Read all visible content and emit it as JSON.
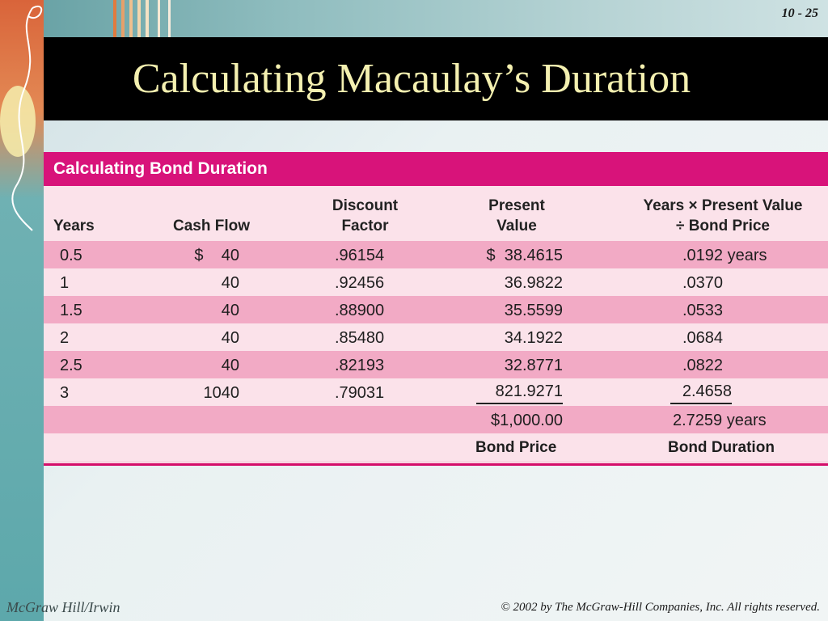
{
  "slide": {
    "number": "10 - 25",
    "title": "Calculating Macaulay’s Duration",
    "footer_left": "McGraw Hill/Irwin",
    "footer_right": "© 2002 by The McGraw-Hill Companies, Inc. All rights reserved."
  },
  "table": {
    "heading": "Calculating Bond Duration",
    "columns": {
      "years": "Years",
      "cash_flow": "Cash Flow",
      "discount_factor_1": "Discount",
      "discount_factor_2": "Factor",
      "present_value_1": "Present",
      "present_value_2": "Value",
      "weighted_1": "Years × Present Value",
      "weighted_2": "÷ Bond Price"
    },
    "rows": [
      {
        "years": "0.5",
        "cash_flow": "$    40",
        "factor": ".96154",
        "pv": "$  38.4615",
        "weighted": ".0192 years"
      },
      {
        "years": "1",
        "cash_flow": "40",
        "factor": ".92456",
        "pv": "36.9822",
        "weighted": ".0370"
      },
      {
        "years": "1.5",
        "cash_flow": "40",
        "factor": ".88900",
        "pv": "35.5599",
        "weighted": ".0533"
      },
      {
        "years": "2",
        "cash_flow": "40",
        "factor": ".85480",
        "pv": "34.1922",
        "weighted": ".0684"
      },
      {
        "years": "2.5",
        "cash_flow": "40",
        "factor": ".82193",
        "pv": "32.8771",
        "weighted": ".0822"
      },
      {
        "years": "3",
        "cash_flow": "1040",
        "factor": ".79031",
        "pv": "821.9271",
        "weighted": "2.4658"
      }
    ],
    "total_pv": "$1,000.00",
    "total_weighted": "2.7259 years",
    "label_pv": "Bond Price",
    "label_weighted": "Bond Duration"
  },
  "colors": {
    "title_bar": "#000000",
    "title_text": "#f4f0b0",
    "table_accent": "#d8137a",
    "row_dark": "#f2aac5",
    "row_light": "#fbe2ea"
  }
}
